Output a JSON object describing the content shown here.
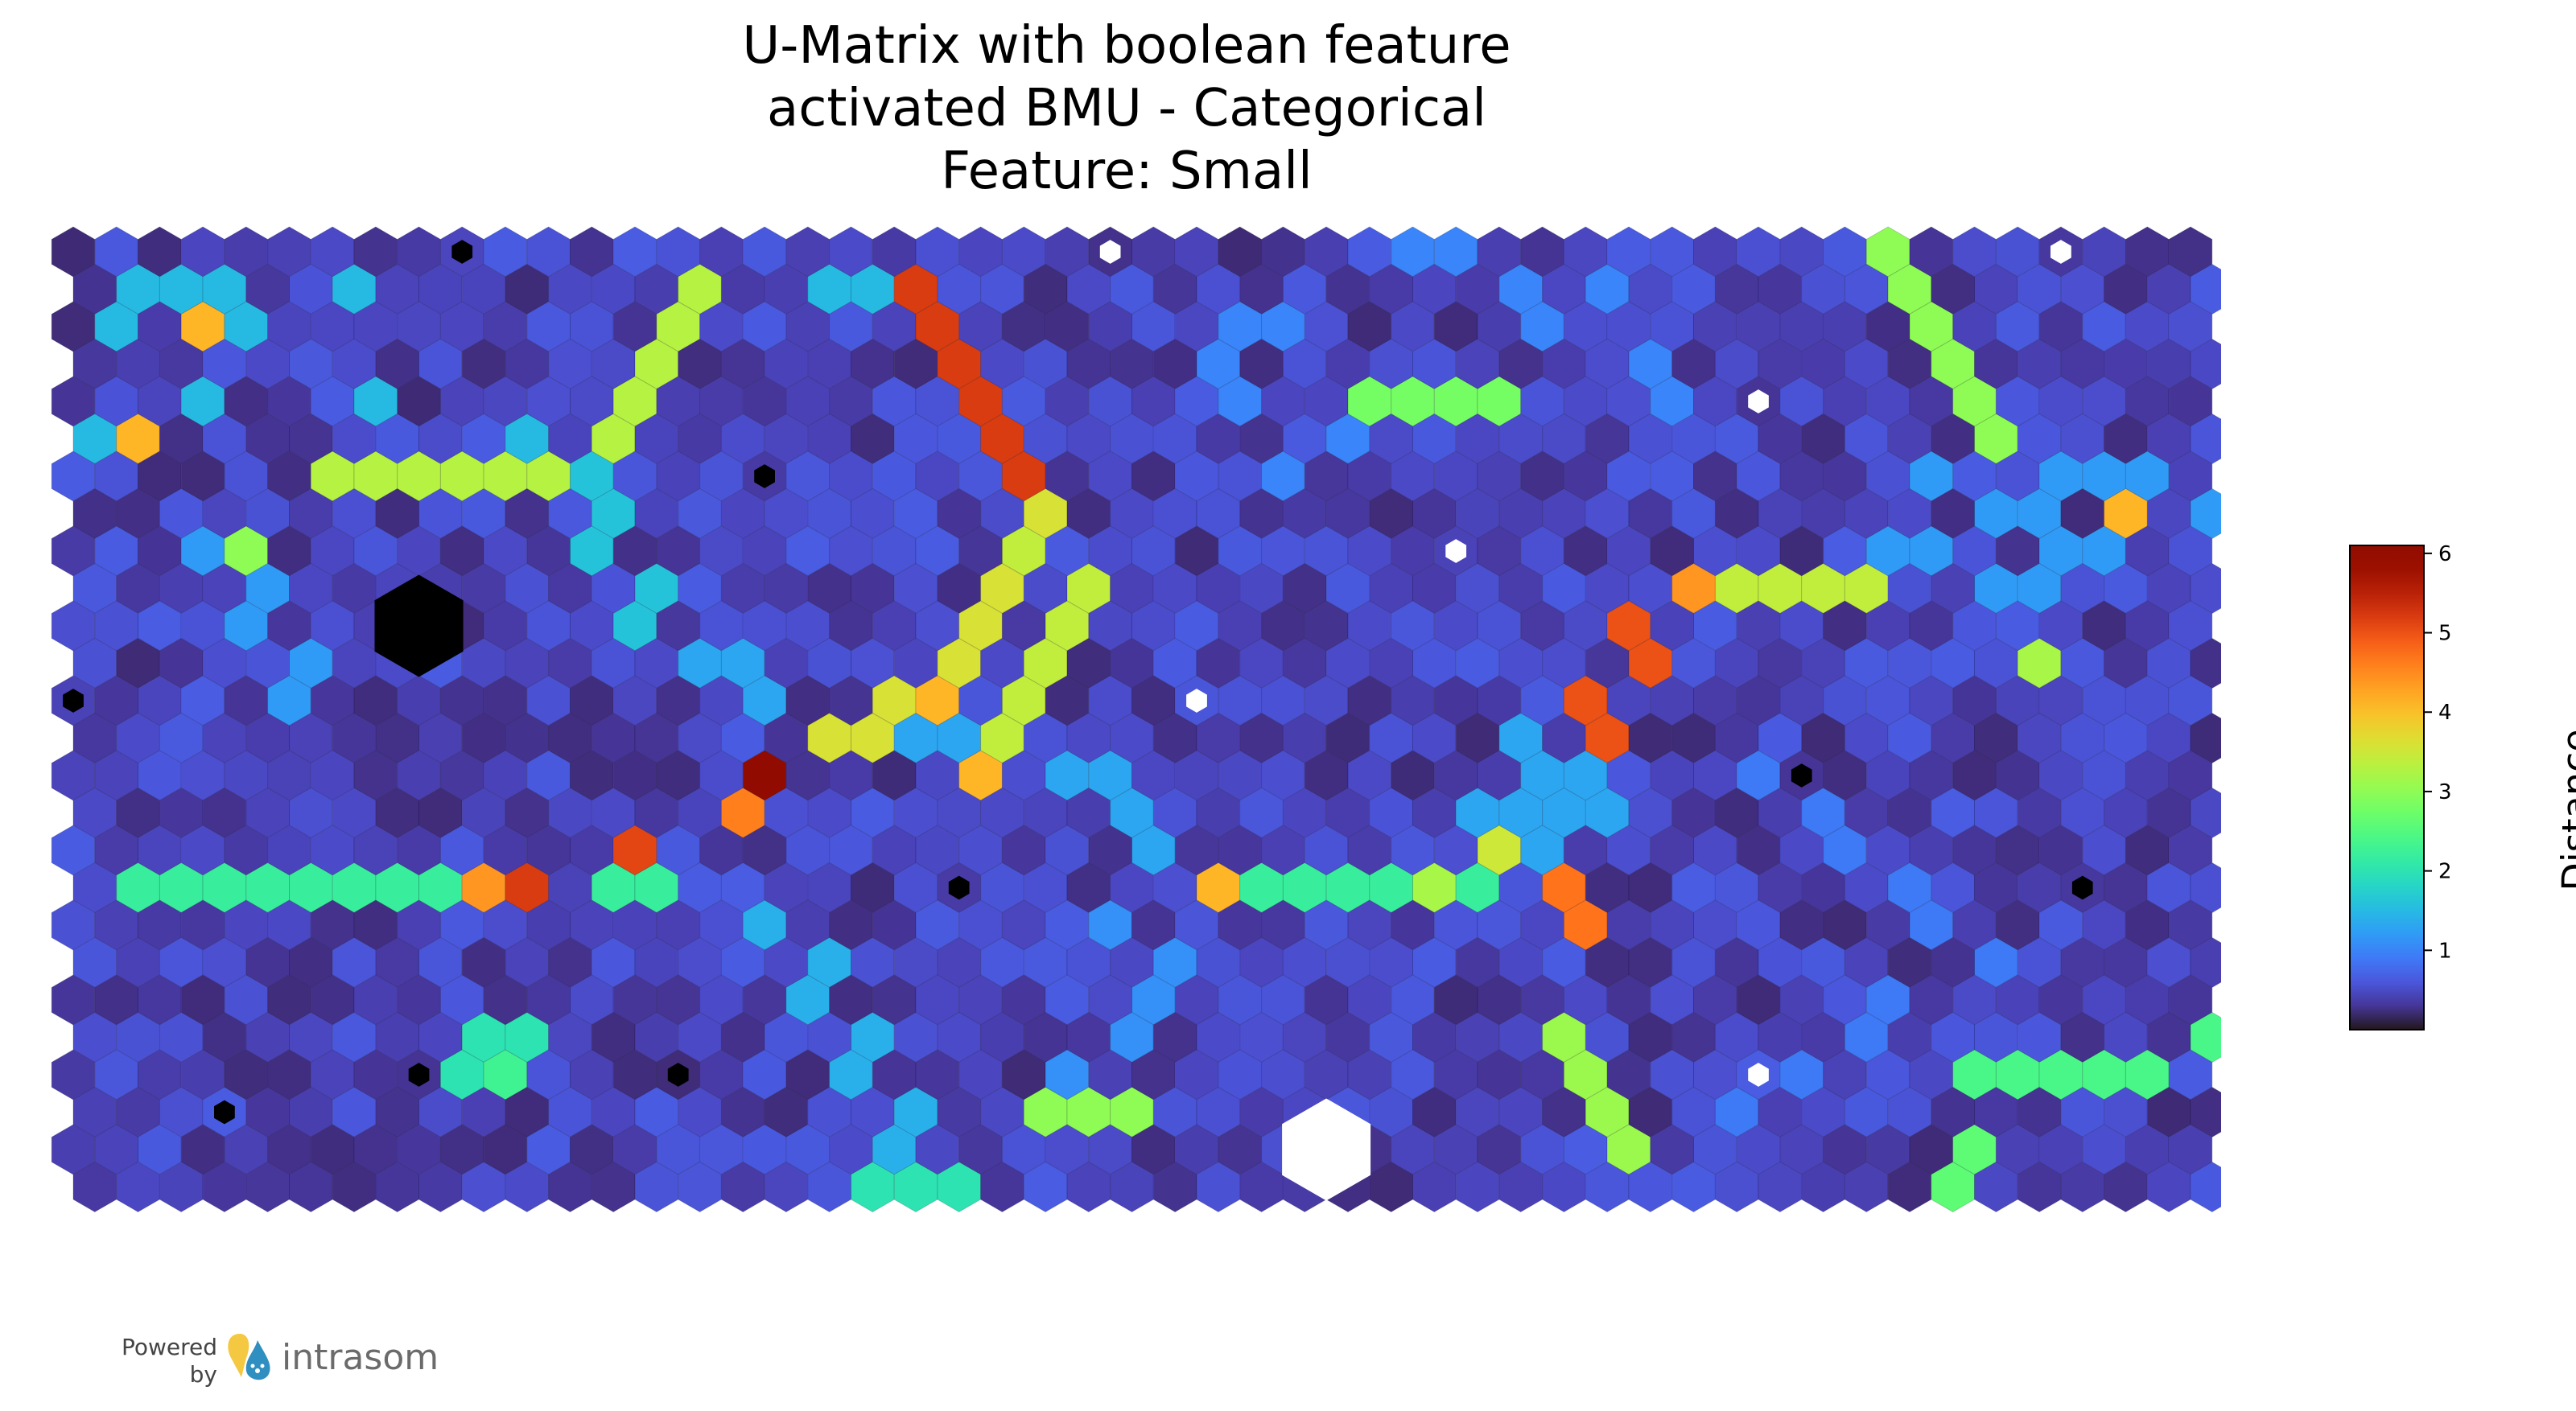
{
  "chart_data": {
    "type": "heatmap",
    "title_lines": [
      "U-Matrix with boolean feature",
      "activated BMU - Categorical",
      "Feature: Small"
    ],
    "colorbar": {
      "label": "Distance",
      "ticks": [
        1,
        2,
        3,
        4,
        5,
        6
      ],
      "range": [
        0,
        6.1
      ],
      "colormap": "turbo"
    },
    "grid": {
      "columns": 50,
      "rows": 26,
      "cell_shape": "hexagon"
    },
    "base_value": 0.2,
    "markers": {
      "bmu_inactive_color": "#000000",
      "bmu_active_color": "#ffffff",
      "black": [
        [
          9,
          0
        ],
        [
          0,
          12
        ],
        [
          16,
          6
        ],
        [
          8,
          22
        ],
        [
          3,
          23
        ],
        [
          40,
          14
        ],
        [
          14,
          22
        ],
        [
          46,
          17
        ],
        [
          20,
          17
        ]
      ],
      "white": [
        [
          24,
          0
        ],
        [
          46,
          0
        ],
        [
          39,
          4
        ],
        [
          32,
          8
        ],
        [
          26,
          12
        ],
        [
          39,
          22
        ]
      ],
      "black_large": [
        [
          8,
          10
        ]
      ],
      "white_large": [
        [
          29,
          24
        ]
      ]
    },
    "features": [
      {
        "kind": "path",
        "value": 5.2,
        "cells": [
          [
            19,
            1
          ],
          [
            20,
            2
          ],
          [
            20,
            3
          ],
          [
            21,
            4
          ],
          [
            21,
            5
          ],
          [
            22,
            6
          ]
        ]
      },
      {
        "kind": "path",
        "value": 3.6,
        "cells": [
          [
            22,
            7
          ],
          [
            22,
            8
          ],
          [
            21,
            9
          ],
          [
            21,
            10
          ],
          [
            20,
            11
          ],
          [
            19,
            12
          ],
          [
            18,
            13
          ],
          [
            17,
            13
          ],
          [
            16,
            14
          ]
        ]
      },
      {
        "kind": "path",
        "value": 3.4,
        "cells": [
          [
            22,
            8
          ],
          [
            23,
            9
          ],
          [
            23,
            10
          ],
          [
            22,
            11
          ],
          [
            22,
            12
          ],
          [
            21,
            13
          ],
          [
            21,
            14
          ]
        ]
      },
      {
        "kind": "path",
        "value": 3.3,
        "cells": [
          [
            14,
            1
          ],
          [
            14,
            2
          ],
          [
            13,
            3
          ],
          [
            13,
            4
          ],
          [
            12,
            5
          ],
          [
            11,
            6
          ],
          [
            10,
            6
          ],
          [
            9,
            6
          ],
          [
            8,
            6
          ],
          [
            7,
            6
          ],
          [
            6,
            6
          ]
        ]
      },
      {
        "kind": "path",
        "value": 3.0,
        "cells": [
          [
            42,
            0
          ],
          [
            42,
            1
          ],
          [
            43,
            2
          ],
          [
            43,
            3
          ],
          [
            44,
            4
          ],
          [
            44,
            5
          ]
        ]
      },
      {
        "kind": "path",
        "value": 3.4,
        "cells": [
          [
            37,
            9
          ],
          [
            38,
            9
          ],
          [
            39,
            9
          ],
          [
            40,
            9
          ],
          [
            41,
            9
          ]
        ]
      },
      {
        "kind": "path",
        "value": 5.0,
        "cells": [
          [
            36,
            10
          ],
          [
            36,
            11
          ],
          [
            35,
            12
          ],
          [
            35,
            13
          ]
        ]
      },
      {
        "kind": "path",
        "value": 2.8,
        "cells": [
          [
            30,
            4
          ],
          [
            31,
            4
          ],
          [
            32,
            4
          ],
          [
            33,
            4
          ]
        ]
      },
      {
        "kind": "path",
        "value": 2.2,
        "cells": [
          [
            1,
            17
          ],
          [
            2,
            17
          ],
          [
            3,
            17
          ],
          [
            4,
            17
          ],
          [
            5,
            17
          ],
          [
            6,
            17
          ],
          [
            7,
            17
          ],
          [
            8,
            17
          ],
          [
            12,
            17
          ],
          [
            13,
            17
          ]
        ]
      },
      {
        "kind": "path",
        "value": 2.2,
        "cells": [
          [
            26,
            17
          ],
          [
            27,
            17
          ],
          [
            28,
            17
          ],
          [
            29,
            17
          ],
          [
            30,
            17
          ],
          [
            31,
            17
          ],
          [
            32,
            17
          ]
        ]
      },
      {
        "kind": "path",
        "value": 3.1,
        "cells": [
          [
            34,
            21
          ],
          [
            35,
            22
          ],
          [
            35,
            23
          ],
          [
            36,
            24
          ]
        ]
      },
      {
        "kind": "path",
        "value": 2.4,
        "cells": [
          [
            44,
            22
          ],
          [
            45,
            22
          ],
          [
            46,
            22
          ],
          [
            47,
            22
          ],
          [
            48,
            22
          ],
          [
            49,
            21
          ]
        ]
      },
      {
        "kind": "path",
        "value": 3.0,
        "cells": [
          [
            22,
            23
          ],
          [
            23,
            23
          ],
          [
            24,
            23
          ]
        ]
      },
      {
        "kind": "path",
        "value": 2.0,
        "cells": [
          [
            18,
            25
          ],
          [
            19,
            25
          ],
          [
            20,
            25
          ]
        ]
      },
      {
        "kind": "path",
        "value": 2.3,
        "cells": [
          [
            10,
            21
          ],
          [
            10,
            22
          ],
          [
            9,
            22
          ]
        ]
      },
      {
        "kind": "path",
        "value": 2.6,
        "cells": [
          [
            44,
            24
          ],
          [
            43,
            25
          ]
        ]
      },
      {
        "kind": "cell",
        "value": 6.0,
        "cells": [
          [
            16,
            14
          ]
        ]
      },
      {
        "kind": "cell",
        "value": 4.6,
        "cells": [
          [
            15,
            15
          ]
        ]
      },
      {
        "kind": "cell",
        "value": 5.1,
        "cells": [
          [
            13,
            16
          ]
        ]
      },
      {
        "kind": "cell",
        "value": 4.4,
        "cells": [
          [
            9,
            17
          ]
        ]
      },
      {
        "kind": "cell",
        "value": 5.2,
        "cells": [
          [
            10,
            17
          ]
        ]
      },
      {
        "kind": "cell",
        "value": 4.1,
        "cells": [
          [
            20,
            12
          ],
          [
            21,
            14
          ],
          [
            26,
            17
          ],
          [
            1,
            5
          ],
          [
            3,
            2
          ],
          [
            47,
            7
          ]
        ]
      },
      {
        "kind": "cell",
        "value": 4.7,
        "cells": [
          [
            34,
            17
          ],
          [
            35,
            18
          ]
        ]
      },
      {
        "kind": "cell",
        "value": 3.5,
        "cells": [
          [
            33,
            16
          ]
        ]
      },
      {
        "kind": "cell",
        "value": 3.2,
        "cells": [
          [
            31,
            17
          ],
          [
            45,
            11
          ]
        ]
      },
      {
        "kind": "cell",
        "value": 4.4,
        "cells": [
          [
            37,
            9
          ]
        ]
      },
      {
        "kind": "cell",
        "value": 3.0,
        "cells": [
          [
            4,
            8
          ]
        ]
      },
      {
        "kind": "cell",
        "value": 1.5,
        "cells": [
          [
            1,
            1
          ],
          [
            2,
            1
          ],
          [
            3,
            1
          ],
          [
            4,
            2
          ],
          [
            1,
            2
          ],
          [
            0,
            5
          ],
          [
            3,
            4
          ],
          [
            7,
            4
          ],
          [
            10,
            5
          ],
          [
            6,
            1
          ],
          [
            17,
            1
          ],
          [
            18,
            1
          ]
        ]
      },
      {
        "kind": "cell",
        "value": 1.3,
        "cells": [
          [
            14,
            11
          ],
          [
            15,
            11
          ],
          [
            16,
            12
          ],
          [
            19,
            13
          ],
          [
            20,
            13
          ],
          [
            23,
            14
          ],
          [
            24,
            14
          ],
          [
            24,
            15
          ],
          [
            25,
            16
          ]
        ]
      },
      {
        "kind": "cell",
        "value": 1.2,
        "cells": [
          [
            43,
            6
          ],
          [
            44,
            7
          ],
          [
            45,
            7
          ],
          [
            46,
            8
          ],
          [
            47,
            8
          ],
          [
            42,
            8
          ],
          [
            43,
            8
          ],
          [
            44,
            9
          ],
          [
            45,
            9
          ],
          [
            46,
            6
          ],
          [
            47,
            6
          ],
          [
            48,
            6
          ],
          [
            49,
            7
          ]
        ]
      },
      {
        "kind": "cell",
        "value": 1.3,
        "cells": [
          [
            33,
            13
          ],
          [
            34,
            14
          ],
          [
            33,
            15
          ],
          [
            32,
            15
          ],
          [
            34,
            15
          ],
          [
            35,
            14
          ],
          [
            34,
            16
          ],
          [
            35,
            15
          ]
        ]
      },
      {
        "kind": "cell",
        "value": 1.2,
        "cells": [
          [
            3,
            8
          ],
          [
            4,
            9
          ],
          [
            4,
            10
          ],
          [
            5,
            11
          ],
          [
            5,
            12
          ]
        ]
      },
      {
        "kind": "cell",
        "value": 1.6,
        "cells": [
          [
            12,
            6
          ],
          [
            12,
            7
          ],
          [
            12,
            8
          ],
          [
            13,
            9
          ],
          [
            13,
            10
          ]
        ]
      },
      {
        "kind": "cell",
        "value": 1.4,
        "cells": [
          [
            16,
            18
          ],
          [
            17,
            19
          ],
          [
            17,
            20
          ],
          [
            18,
            21
          ],
          [
            18,
            22
          ],
          [
            19,
            23
          ],
          [
            19,
            24
          ]
        ]
      },
      {
        "kind": "cell",
        "value": 1.1,
        "cells": [
          [
            24,
            18
          ],
          [
            25,
            19
          ],
          [
            25,
            20
          ],
          [
            24,
            21
          ],
          [
            23,
            22
          ]
        ]
      },
      {
        "kind": "cell",
        "value": 2.0,
        "cells": [
          [
            9,
            21
          ],
          [
            9,
            22
          ],
          [
            10,
            21
          ]
        ]
      },
      {
        "kind": "cell",
        "value": 1.0,
        "cells": [
          [
            27,
            2
          ],
          [
            28,
            2
          ],
          [
            26,
            3
          ],
          [
            27,
            4
          ],
          [
            29,
            5
          ],
          [
            28,
            6
          ],
          [
            31,
            0
          ],
          [
            32,
            0
          ],
          [
            33,
            1
          ],
          [
            34,
            2
          ],
          [
            35,
            1
          ],
          [
            36,
            3
          ],
          [
            37,
            4
          ]
        ]
      },
      {
        "kind": "cell",
        "value": 0.9,
        "cells": [
          [
            39,
            14
          ],
          [
            40,
            15
          ],
          [
            41,
            16
          ],
          [
            42,
            17
          ],
          [
            43,
            18
          ],
          [
            44,
            19
          ],
          [
            42,
            20
          ],
          [
            41,
            21
          ],
          [
            40,
            22
          ],
          [
            38,
            23
          ]
        ]
      }
    ]
  }
}
